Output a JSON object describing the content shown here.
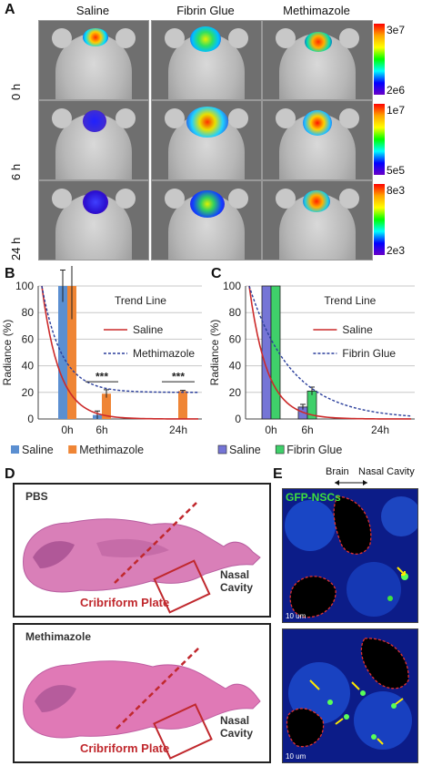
{
  "panels": {
    "A": "A",
    "B": "B",
    "C": "C",
    "D": "D",
    "E": "E"
  },
  "panel_a": {
    "columns": [
      "Saline",
      "Fibrin Glue",
      "Methimazole"
    ],
    "rows": [
      "0 h",
      "6 h",
      "24 h"
    ],
    "colorbars": [
      {
        "max": "3e7",
        "min": "2e6"
      },
      {
        "max": "1e7",
        "min": "5e5"
      },
      {
        "max": "8e3",
        "min": "2e3"
      }
    ]
  },
  "chart_data": [
    {
      "type": "bar",
      "panel": "B",
      "ylabel": "Radiance (%)",
      "ylim": [
        0,
        100
      ],
      "yticks": [
        0,
        20,
        40,
        60,
        80,
        100
      ],
      "categories": [
        "0h",
        "6h",
        "24h"
      ],
      "series": [
        {
          "name": "Saline",
          "color": "#5b8fd1",
          "values": [
            100,
            3,
            0
          ]
        },
        {
          "name": "Methimazole",
          "color": "#ef8535",
          "values": [
            100,
            19,
            21
          ]
        }
      ],
      "error_bars": {
        "Saline": [
          12,
          3,
          0
        ],
        "Methimazole": [
          25,
          3,
          0.5
        ]
      },
      "significance": [
        {
          "category": "6h",
          "label": "***"
        },
        {
          "category": "24h",
          "label": "***"
        }
      ],
      "trend_legend_title": "Trend Line",
      "trend_lines": [
        {
          "name": "Saline",
          "color": "#cc2a2a",
          "style": "solid"
        },
        {
          "name": "Methimazole",
          "color": "#2b3f9c",
          "style": "dashed"
        }
      ],
      "legend": "bottom",
      "grid": true
    },
    {
      "type": "bar",
      "panel": "C",
      "ylabel": "Radiance (%)",
      "ylim": [
        0,
        100
      ],
      "yticks": [
        0,
        20,
        40,
        60,
        80,
        100
      ],
      "categories": [
        "0h",
        "6h",
        "24h"
      ],
      "series": [
        {
          "name": "Saline",
          "color": "#7575d6",
          "values": [
            100,
            9,
            0
          ]
        },
        {
          "name": "Fibrin Glue",
          "color": "#3fd06a",
          "values": [
            100,
            21,
            0
          ]
        }
      ],
      "error_bars": {
        "Saline": [
          0,
          2,
          0
        ],
        "Fibrin Glue": [
          0,
          3,
          0
        ]
      },
      "trend_legend_title": "Trend Line",
      "trend_lines": [
        {
          "name": "Saline",
          "color": "#cc2a2a",
          "style": "solid"
        },
        {
          "name": "Fibrin Glue",
          "color": "#2b3f9c",
          "style": "dashed"
        }
      ],
      "legend": "bottom",
      "grid": true
    }
  ],
  "panel_d": {
    "top_label": "PBS",
    "bottom_label": "Methimazole",
    "plate_label": "Cribriform Plate",
    "cavity_label": "Nasal\nCavity"
  },
  "panel_e": {
    "brain_label": "Brain",
    "nasal_label": "Nasal Cavity",
    "cells_label": "GFP-NSCs",
    "scale_label": "10 um"
  },
  "colors": {
    "trend_red": "#cc2a2a",
    "trend_blue": "#2b3f9c",
    "box_red": "#c0282d"
  }
}
